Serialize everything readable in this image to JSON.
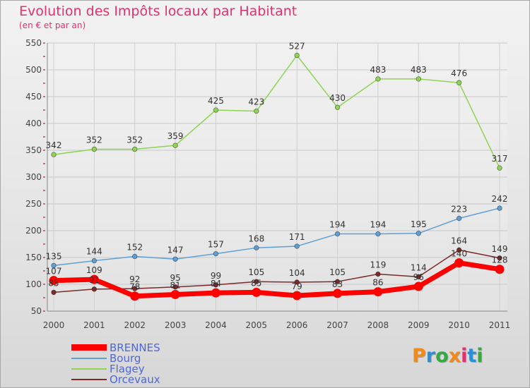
{
  "header": {
    "title": "Evolution des Impôts locaux par Habitant",
    "subtitle": "(en € et par an)"
  },
  "logo": {
    "text": "Proxiti",
    "colors": [
      "#f08a1c",
      "#2b8fd6",
      "#36a844",
      "#f08a1c",
      "#e3306f",
      "#2b8fd6",
      "#36a844"
    ]
  },
  "chart_data": {
    "type": "line",
    "title": "Evolution des Impôts locaux par Habitant",
    "subtitle": "(en € et par an)",
    "x": [
      "2000",
      "2001",
      "2002",
      "2003",
      "2004",
      "2005",
      "2006",
      "2007",
      "2008",
      "2009",
      "2010",
      "2011"
    ],
    "ylim": [
      50,
      550
    ],
    "yticks": [
      50,
      100,
      150,
      200,
      250,
      300,
      350,
      400,
      450,
      500,
      550
    ],
    "grid": true,
    "legend_position": "bottom-left",
    "series": [
      {
        "name": "BRENNES",
        "color": "#ff0000",
        "values": [
          107,
          109,
          78,
          81,
          84,
          85,
          79,
          83,
          86,
          96,
          140,
          128
        ]
      },
      {
        "name": "Bourg",
        "color": "#5f9fd6",
        "values": [
          135,
          144,
          152,
          147,
          157,
          168,
          171,
          194,
          194,
          195,
          223,
          242
        ]
      },
      {
        "name": "Flagey",
        "color": "#8fd452",
        "values": [
          342,
          352,
          352,
          359,
          425,
          423,
          527,
          430,
          483,
          483,
          476,
          317
        ]
      },
      {
        "name": "Orcevaux",
        "color": "#7a2a2a",
        "values": [
          85,
          91,
          92,
          95,
          99,
          105,
          104,
          105,
          119,
          114,
          164,
          149
        ]
      }
    ]
  }
}
